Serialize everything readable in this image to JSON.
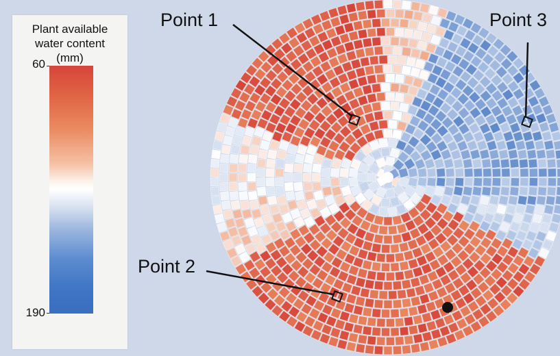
{
  "legend": {
    "title_lines": [
      "Plant available",
      "water content",
      "(mm)"
    ],
    "max_value": "60",
    "min_value": "190",
    "colors": [
      "#d6453a",
      "#ea8c62",
      "#ffffff",
      "#9cb6de",
      "#3a6fbf"
    ]
  },
  "points": [
    {
      "label": "Point 1"
    },
    {
      "label": "Point 2"
    },
    {
      "label": "Point 3"
    }
  ],
  "map": {
    "type": "polar-grid-heatmap",
    "marker": "black-dot"
  }
}
